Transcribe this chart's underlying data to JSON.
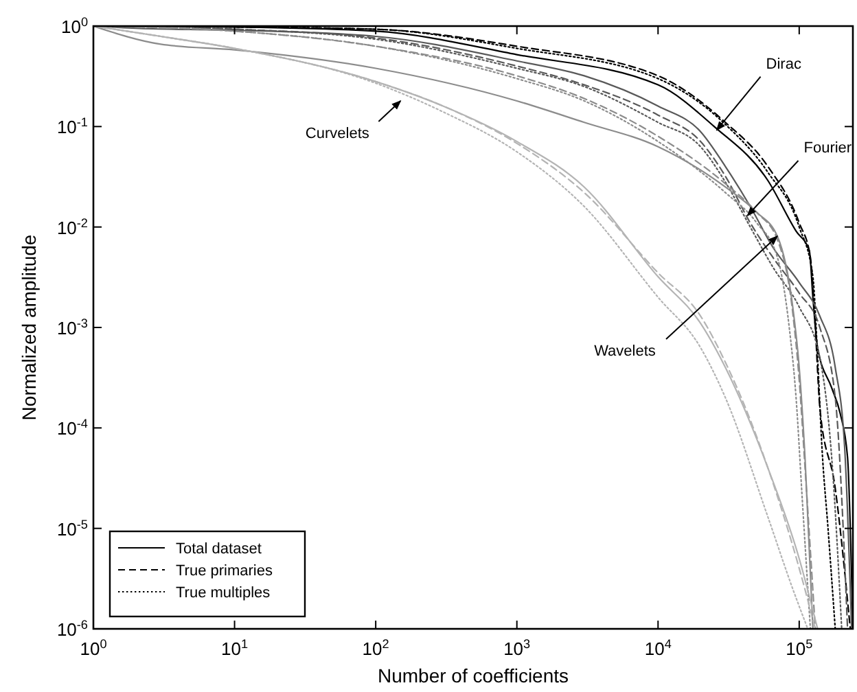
{
  "chart_data": {
    "type": "line",
    "xlabel": "Number of coefficients",
    "ylabel": "Normalized amplitude",
    "log": "xy",
    "xlim": [
      1,
      240000
    ],
    "ylim": [
      1e-06,
      1
    ],
    "xticks": [
      {
        "value": 1,
        "label": "10$^{0}$"
      },
      {
        "value": 10,
        "label": "10$^{1}$"
      },
      {
        "value": 100,
        "label": "10$^{2}$"
      },
      {
        "value": 1000,
        "label": "10$^{3}$"
      },
      {
        "value": 10000,
        "label": "10$^{4}$"
      },
      {
        "value": 100000,
        "label": "10$^{5}$"
      }
    ],
    "yticks": [
      {
        "value": 1e-06,
        "label": "10$^{-6}$"
      },
      {
        "value": 1e-05,
        "label": "10$^{-5}$"
      },
      {
        "value": 0.0001,
        "label": "10$^{-4}$"
      },
      {
        "value": 0.001,
        "label": "10$^{-3}$"
      },
      {
        "value": 0.01,
        "label": "10$^{-2}$"
      },
      {
        "value": 0.1,
        "label": "10$^{-1}$"
      },
      {
        "value": 1,
        "label": "10$^{0}$"
      }
    ],
    "grid": false,
    "legend": "bottom left",
    "marker": "none",
    "series": [
      {
        "name": "Total dataset",
        "color": "#000000",
        "line_style": "solid",
        "x": [
          1,
          10,
          100,
          1000,
          10000,
          25000,
          60000,
          95000,
          118000,
          125000,
          135000,
          170000,
          195000,
          220000,
          240000
        ],
        "values": [
          1,
          0.98,
          0.89,
          0.52,
          0.26,
          0.1,
          0.029,
          0.0091,
          0.0058,
          0.002,
          0.00063,
          0.00025,
          0.00014,
          5.1e-05,
          1e-06
        ]
      },
      {
        "name": "True primaries",
        "color": "#000000",
        "line_style": "dashed",
        "x": [
          1,
          10,
          100,
          1000,
          10000,
          30000,
          60000,
          100000,
          120000,
          130000,
          140000,
          180000,
          230000
        ],
        "values": [
          1,
          0.98,
          0.93,
          0.63,
          0.32,
          0.11,
          0.04,
          0.011,
          0.005,
          0.001,
          0.00016,
          2.5e-05,
          1e-06
        ]
      },
      {
        "name": "True multiples",
        "color": "#000000",
        "line_style": "dotted",
        "x": [
          1,
          10,
          100,
          1000,
          10000,
          30000,
          60000,
          100000,
          125000,
          135000,
          145000,
          160000,
          180000
        ],
        "values": [
          1,
          0.98,
          0.93,
          0.6,
          0.3,
          0.105,
          0.035,
          0.01,
          0.0032,
          0.0005,
          6.3e-05,
          1e-05,
          1e-06
        ]
      },
      {
        "color": "#595959",
        "line_style": "solid",
        "x": [
          1,
          2,
          10,
          100,
          1000,
          3000,
          10000,
          20000,
          30000,
          45000,
          65000,
          100000,
          140000,
          180000,
          210000,
          235000
        ],
        "values": [
          1,
          0.95,
          0.91,
          0.79,
          0.45,
          0.32,
          0.16,
          0.089,
          0.04,
          0.016,
          0.0063,
          0.0028,
          0.0013,
          0.0004,
          6.3e-05,
          1e-06
        ]
      },
      {
        "color": "#595959",
        "line_style": "dashed",
        "x": [
          1,
          10,
          100,
          1000,
          3000,
          10000,
          20000,
          30000,
          45000,
          65000,
          100000,
          140000,
          180000,
          220000
        ],
        "values": [
          1,
          0.93,
          0.76,
          0.4,
          0.26,
          0.13,
          0.071,
          0.032,
          0.011,
          0.005,
          0.0022,
          0.001,
          0.0002,
          1e-06
        ]
      },
      {
        "color": "#595959",
        "line_style": "dotted",
        "x": [
          1,
          10,
          100,
          1000,
          3000,
          10000,
          20000,
          30000,
          45000,
          65000,
          100000,
          140000,
          170000,
          200000
        ],
        "values": [
          1,
          0.93,
          0.74,
          0.38,
          0.25,
          0.11,
          0.063,
          0.028,
          0.01,
          0.004,
          0.0016,
          0.0005,
          5e-05,
          1e-06
        ]
      },
      {
        "color": "#8c8c8c",
        "line_style": "solid",
        "x": [
          1,
          3,
          10,
          100,
          1000,
          3000,
          10000,
          30000,
          50000,
          70000,
          90000,
          100000,
          110000,
          125000
        ],
        "values": [
          1,
          0.66,
          0.58,
          0.38,
          0.18,
          0.11,
          0.063,
          0.025,
          0.014,
          0.0081,
          0.0016,
          0.0004,
          5e-05,
          1e-06
        ]
      },
      {
        "color": "#8c8c8c",
        "line_style": "dashed",
        "x": [
          1,
          10,
          100,
          1000,
          3000,
          10000,
          30000,
          50000,
          70000,
          90000,
          100000,
          110000,
          130000
        ],
        "values": [
          1,
          0.89,
          0.63,
          0.32,
          0.19,
          0.08,
          0.027,
          0.014,
          0.0075,
          0.0014,
          0.0003,
          4e-05,
          1e-06
        ]
      },
      {
        "color": "#8c8c8c",
        "line_style": "dotted",
        "x": [
          1,
          10,
          100,
          1000,
          3000,
          10000,
          30000,
          50000,
          70000,
          85000,
          95000,
          105000,
          120000
        ],
        "values": [
          1,
          0.89,
          0.63,
          0.3,
          0.18,
          0.071,
          0.022,
          0.011,
          0.005,
          0.001,
          0.0002,
          2e-05,
          1e-06
        ]
      },
      {
        "color": "#b4b4b4",
        "line_style": "solid",
        "x": [
          1,
          3,
          10,
          100,
          300,
          1000,
          3000,
          10000,
          20000,
          30000,
          60000,
          100000,
          135000
        ],
        "values": [
          1,
          0.79,
          0.6,
          0.28,
          0.16,
          0.071,
          0.025,
          0.0032,
          0.0011,
          0.0004,
          4e-05,
          5e-06,
          1e-06
        ]
      },
      {
        "color": "#b4b4b4",
        "line_style": "dashed",
        "x": [
          1,
          3,
          10,
          100,
          300,
          1000,
          3000,
          10000,
          20000,
          30000,
          60000,
          100000,
          130000
        ],
        "values": [
          1,
          0.79,
          0.6,
          0.28,
          0.16,
          0.068,
          0.022,
          0.0035,
          0.0013,
          0.00045,
          4e-05,
          4e-06,
          1e-06
        ]
      },
      {
        "color": "#b4b4b4",
        "line_style": "dotted",
        "x": [
          1,
          3,
          10,
          100,
          300,
          1000,
          3000,
          10000,
          20000,
          30000,
          60000,
          90000,
          115000
        ],
        "values": [
          1,
          0.79,
          0.6,
          0.27,
          0.14,
          0.056,
          0.016,
          0.002,
          0.00063,
          0.0002,
          1.3e-05,
          2.5e-06,
          1e-06
        ]
      }
    ],
    "annotations": [
      {
        "text": "Dirac",
        "x": 26000,
        "y": 0.092
      },
      {
        "text": "Fourier",
        "x": 43000,
        "y": 0.013
      },
      {
        "text": "Wavelets",
        "x": 70000,
        "y": 0.0081
      },
      {
        "text": "Curvelets",
        "x": 150,
        "y": 0.18
      }
    ]
  }
}
